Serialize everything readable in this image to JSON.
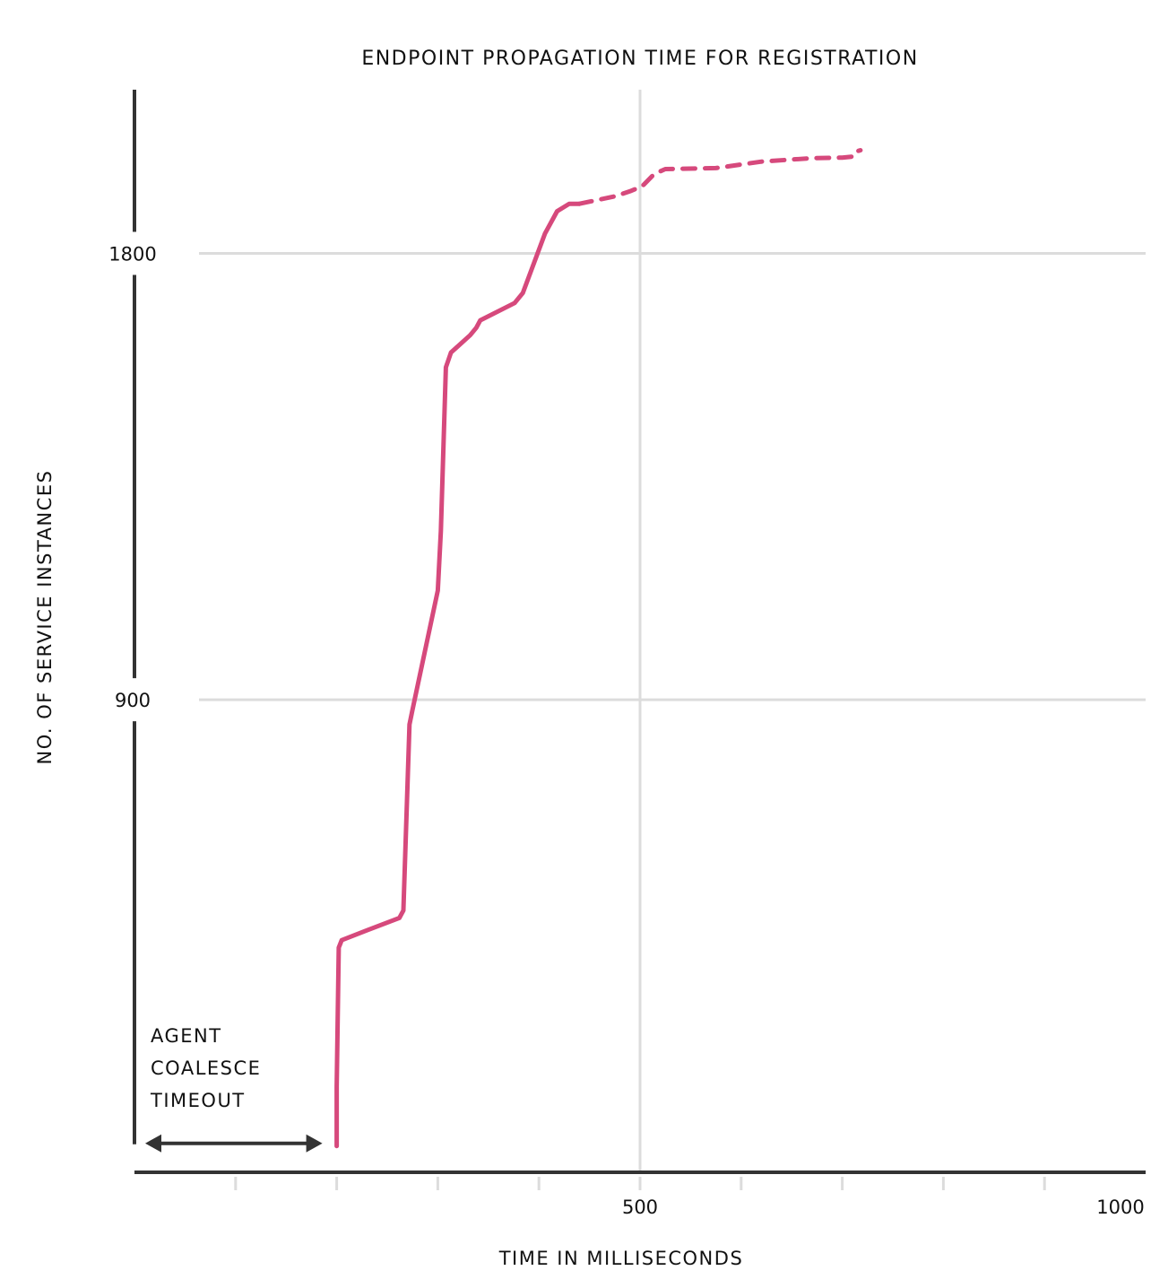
{
  "chart_data": {
    "type": "line",
    "title": "ENDPOINT PROPAGATION TIME FOR REGISTRATION",
    "xlabel": "TIME IN MILLISECONDS",
    "ylabel": "NO. OF SERVICE INSTANCES",
    "xlim": [
      0,
      1000
    ],
    "ylim": [
      -53,
      2130
    ],
    "x_ticks": [
      100,
      200,
      300,
      400,
      500,
      600,
      700,
      800,
      900,
      1000
    ],
    "x_tick_labels": [
      {
        "value": 500,
        "label": "500"
      },
      {
        "value": 1000,
        "label": "1000"
      }
    ],
    "y_ticks": [
      {
        "value": 900,
        "label": "900"
      },
      {
        "value": 1800,
        "label": "1800"
      }
    ],
    "grid": true,
    "colors": {
      "series": "#d6497c",
      "axis": "#333333",
      "grid": "#dcdcdc",
      "annotation": "#333333"
    },
    "series": [
      {
        "style": "solid",
        "points": [
          [
            200,
            0
          ],
          [
            200,
            120
          ],
          [
            202,
            400
          ],
          [
            205,
            415
          ],
          [
            230,
            435
          ],
          [
            262,
            460
          ],
          [
            266,
            475
          ],
          [
            272,
            850
          ],
          [
            275,
            880
          ],
          [
            300,
            1120
          ],
          [
            303,
            1240
          ],
          [
            308,
            1570
          ],
          [
            313,
            1600
          ],
          [
            332,
            1635
          ],
          [
            338,
            1650
          ],
          [
            342,
            1665
          ],
          [
            376,
            1700
          ],
          [
            384,
            1720
          ],
          [
            406,
            1840
          ],
          [
            418,
            1885
          ],
          [
            430,
            1900
          ],
          [
            440,
            1900
          ]
        ]
      },
      {
        "style": "dashed",
        "points": [
          [
            440,
            1900
          ],
          [
            475,
            1915
          ],
          [
            490,
            1925
          ],
          [
            502,
            1935
          ],
          [
            514,
            1960
          ],
          [
            525,
            1970
          ],
          [
            575,
            1972
          ],
          [
            620,
            1985
          ],
          [
            670,
            1992
          ],
          [
            700,
            1993
          ],
          [
            710,
            1995
          ],
          [
            713,
            2005
          ],
          [
            718,
            2008
          ]
        ]
      }
    ],
    "annotation": {
      "text": [
        "AGENT",
        "COALESCE",
        "TIMEOUT"
      ],
      "x_start": 0,
      "x_end": 200
    }
  }
}
